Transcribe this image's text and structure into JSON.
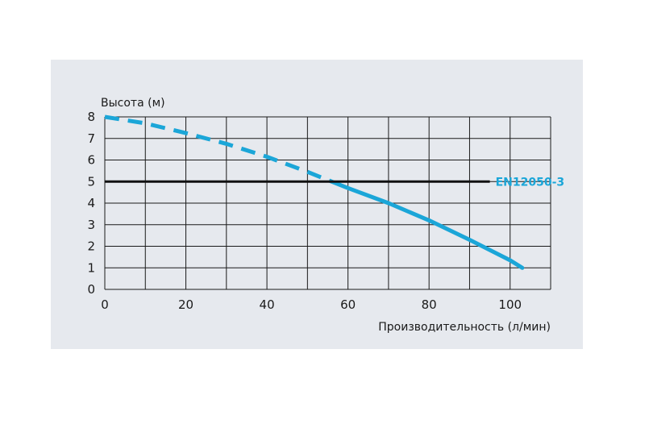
{
  "chart_data": {
    "type": "line",
    "xlabel": "Производительность (л/мин)",
    "ylabel": "Высота (м)",
    "xlim": [
      0,
      110
    ],
    "ylim": [
      0,
      8
    ],
    "x_ticks": [
      "0",
      "20",
      "40",
      "60",
      "80",
      "100"
    ],
    "y_ticks": [
      "0",
      "1",
      "2",
      "3",
      "4",
      "5",
      "6",
      "7",
      "8"
    ],
    "grid": true,
    "series": [
      {
        "style": "dashed",
        "color": "#1ba6d8",
        "x": [
          0,
          10,
          20,
          30,
          40,
          50,
          56
        ],
        "y": [
          8.0,
          7.7,
          7.25,
          6.75,
          6.15,
          5.45,
          5.0
        ]
      },
      {
        "style": "solid",
        "color": "#1ba6d8",
        "x": [
          56,
          60,
          70,
          80,
          90,
          100,
          103
        ],
        "y": [
          5.0,
          4.7,
          4.0,
          3.2,
          2.3,
          1.35,
          1.0
        ]
      }
    ],
    "reference_line": {
      "y": 5,
      "x_end": 95,
      "color": "#111111",
      "label": "EN12050-3"
    }
  }
}
